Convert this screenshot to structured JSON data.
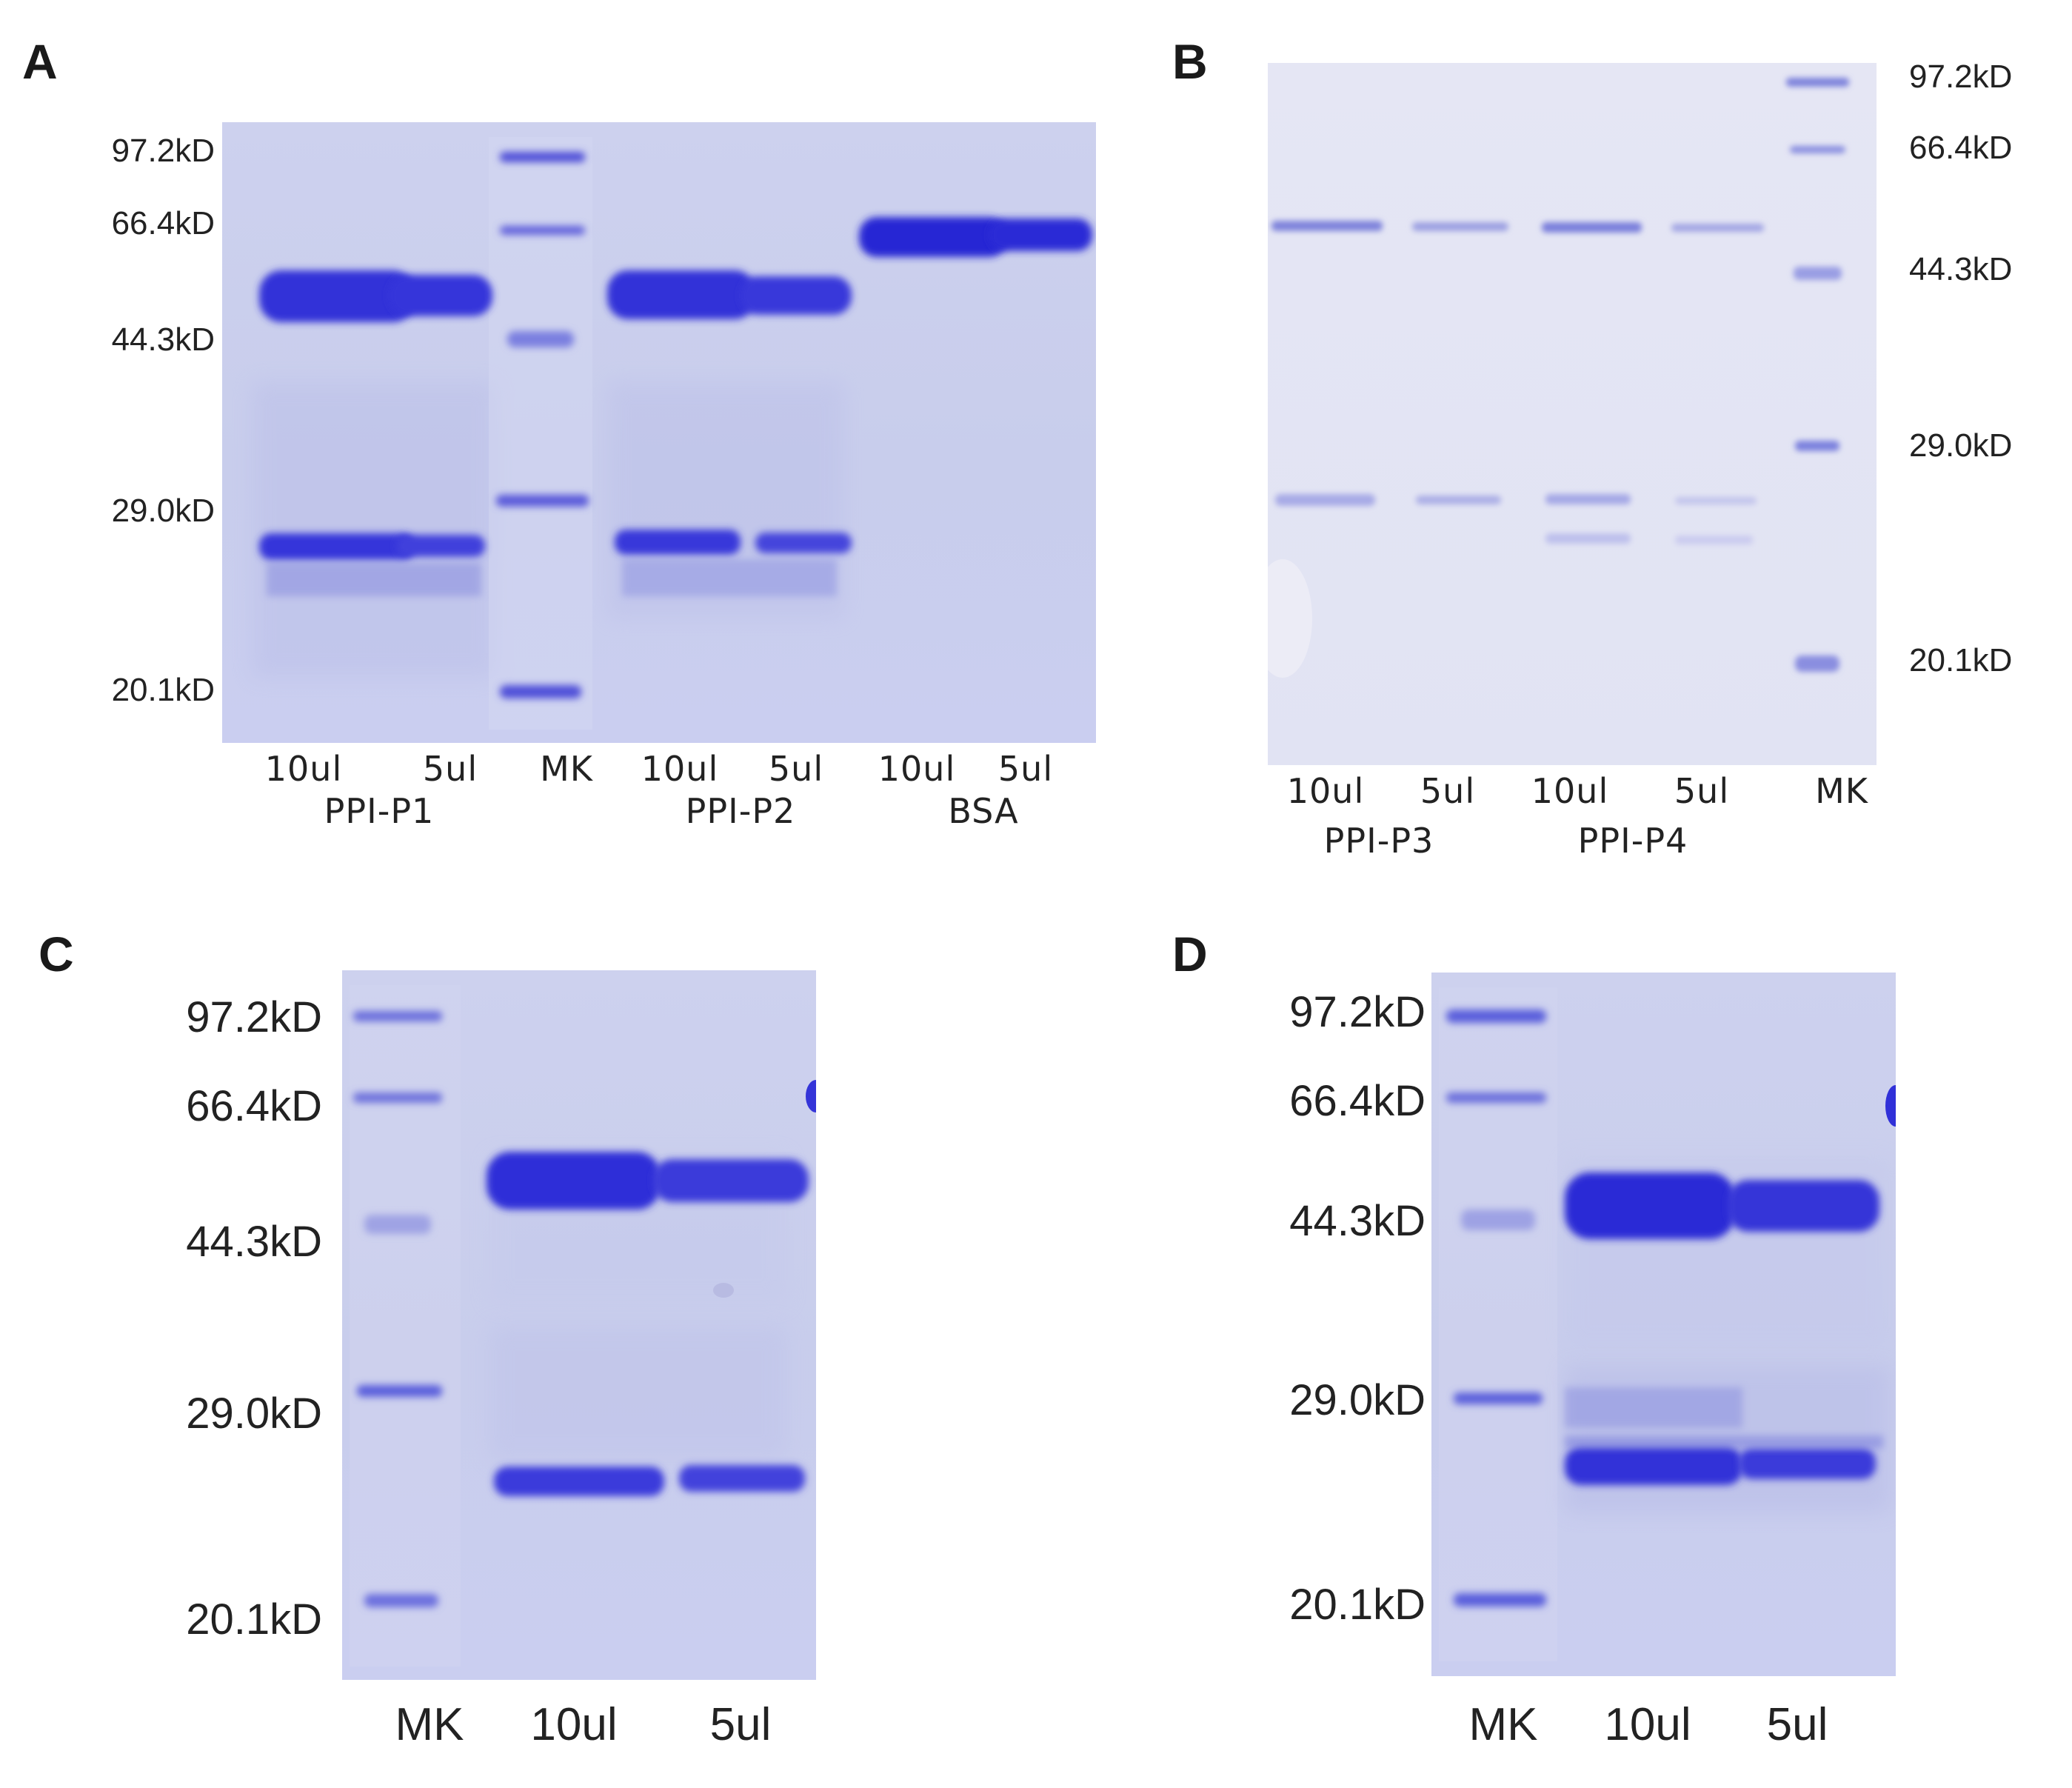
{
  "figure": {
    "panels": [
      {
        "letter": "A",
        "markers": [
          "97.2kD",
          "66.4kD",
          "44.3kD",
          "29.0kD",
          "20.1kD"
        ],
        "lanes": [
          "10ul",
          "5ul",
          "MK",
          "10ul",
          "5ul",
          "10ul",
          "5ul"
        ],
        "groups": [
          "PPI-P1",
          "PPI-P2",
          "BSA"
        ]
      },
      {
        "letter": "B",
        "markers": [
          "97.2kD",
          "66.4kD",
          "44.3kD",
          "29.0kD",
          "20.1kD"
        ],
        "lanes": [
          "10ul",
          "5ul",
          "10ul",
          "5ul",
          "MK"
        ],
        "groups": [
          "PPI-P3",
          "PPI-P4"
        ]
      },
      {
        "letter": "C",
        "markers": [
          "97.2kD",
          "66.4kD",
          "44.3kD",
          "29.0kD",
          "20.1kD"
        ],
        "lanes": [
          "MK",
          "10ul",
          "5ul"
        ]
      },
      {
        "letter": "D",
        "markers": [
          "97.2kD",
          "66.4kD",
          "44.3kD",
          "29.0kD",
          "20.1kD"
        ],
        "lanes": [
          "MK",
          "10ul",
          "5ul"
        ]
      }
    ],
    "colors": {
      "band": "#2a2ad6",
      "gel_background": "#cdd1ee",
      "gel_background_light": "#e3e4f4"
    }
  }
}
